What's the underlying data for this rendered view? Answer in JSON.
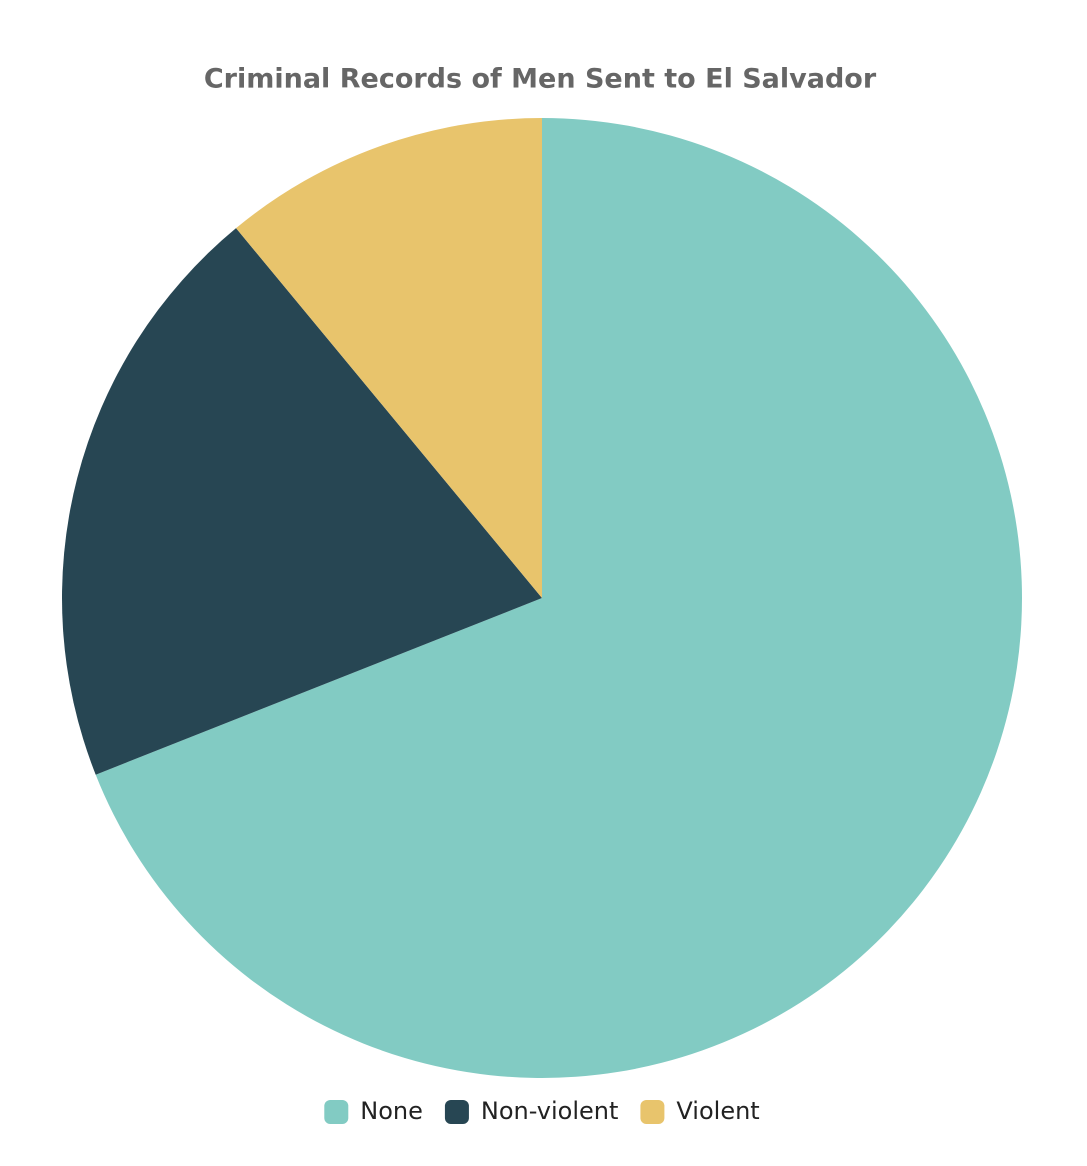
{
  "chart_data": {
    "type": "pie",
    "title": "Criminal Records of Men Sent to El Salvador",
    "categories": [
      "None",
      "Non-violent",
      "Violent"
    ],
    "values": [
      69,
      20,
      11
    ],
    "colors": [
      "#82cbc3",
      "#274653",
      "#e8c46c"
    ],
    "legend": "bottom"
  }
}
